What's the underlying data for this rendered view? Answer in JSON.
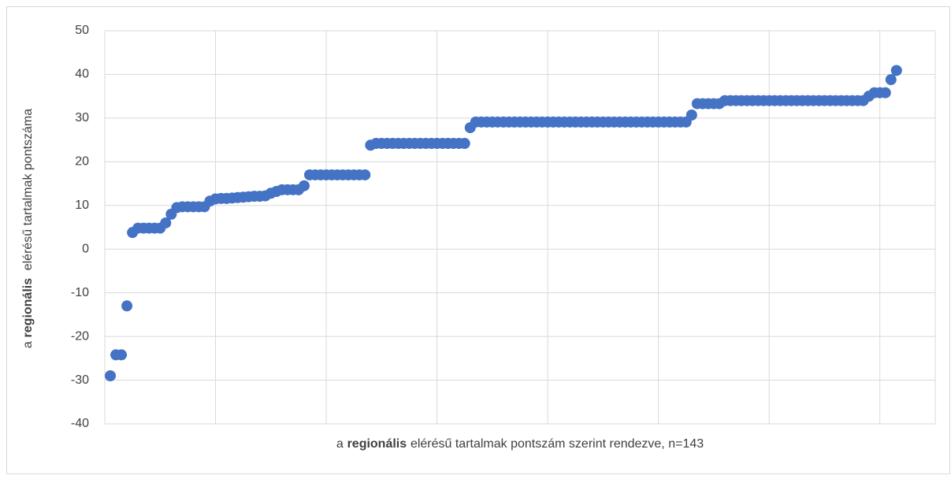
{
  "chart_data": {
    "type": "scatter",
    "x_label": {
      "prefix": "a",
      "bold": "regionális",
      "suffix": "elérésű tartalmak pontszám szerint rendezve, n=143"
    },
    "y_label": {
      "prefix": "a",
      "bold": "regionális",
      "suffix": "elérésű tartalmak pontszáma"
    },
    "color": "#4472c4",
    "grid": true,
    "xlim": [
      0,
      150
    ],
    "xticks": [
      0,
      20,
      40,
      60,
      80,
      100,
      120,
      140
    ],
    "ylim": [
      -40,
      50
    ],
    "yticks": [
      -40,
      -30,
      -20,
      -10,
      0,
      10,
      20,
      30,
      40,
      50
    ],
    "x": [
      1,
      2,
      3,
      4,
      5,
      6,
      7,
      8,
      9,
      10,
      11,
      12,
      13,
      14,
      15,
      16,
      17,
      18,
      19,
      20,
      21,
      22,
      23,
      24,
      25,
      26,
      27,
      28,
      29,
      30,
      31,
      32,
      33,
      34,
      35,
      36,
      37,
      38,
      39,
      40,
      41,
      42,
      43,
      44,
      45,
      46,
      47,
      48,
      49,
      50,
      51,
      52,
      53,
      54,
      55,
      56,
      57,
      58,
      59,
      60,
      61,
      62,
      63,
      64,
      65,
      66,
      67,
      68,
      69,
      70,
      71,
      72,
      73,
      74,
      75,
      76,
      77,
      78,
      79,
      80,
      81,
      82,
      83,
      84,
      85,
      86,
      87,
      88,
      89,
      90,
      91,
      92,
      93,
      94,
      95,
      96,
      97,
      98,
      99,
      100,
      101,
      102,
      103,
      104,
      105,
      106,
      107,
      108,
      109,
      110,
      111,
      112,
      113,
      114,
      115,
      116,
      117,
      118,
      119,
      120,
      121,
      122,
      123,
      124,
      125,
      126,
      127,
      128,
      129,
      130,
      131,
      132,
      133,
      134,
      135,
      136,
      137,
      138,
      139,
      140,
      141,
      142,
      143
    ],
    "values": [
      -29,
      -24.2,
      -24.2,
      -13,
      3.8,
      4.8,
      4.8,
      4.8,
      4.8,
      4.8,
      6,
      8,
      9.5,
      9.7,
      9.7,
      9.7,
      9.7,
      9.7,
      11,
      11.5,
      11.6,
      11.6,
      11.7,
      11.8,
      11.9,
      12,
      12.1,
      12.1,
      12.2,
      12.8,
      13.2,
      13.6,
      13.6,
      13.6,
      13.6,
      14.5,
      17,
      17,
      17,
      17,
      17,
      17,
      17,
      17,
      17,
      17,
      17,
      23.8,
      24.2,
      24.2,
      24.2,
      24.2,
      24.2,
      24.2,
      24.2,
      24.2,
      24.2,
      24.2,
      24.2,
      24.2,
      24.2,
      24.2,
      24.2,
      24.2,
      24.2,
      27.8,
      29.1,
      29.1,
      29.1,
      29.1,
      29.1,
      29.1,
      29.1,
      29.1,
      29.1,
      29.1,
      29.1,
      29.1,
      29.1,
      29.1,
      29.1,
      29.1,
      29.1,
      29.1,
      29.1,
      29.1,
      29.1,
      29.1,
      29.1,
      29.1,
      29.1,
      29.1,
      29.1,
      29.1,
      29.1,
      29.1,
      29.1,
      29.1,
      29.1,
      29.1,
      29.1,
      29.1,
      29.1,
      29.1,
      29.1,
      30.7,
      33.3,
      33.3,
      33.3,
      33.3,
      33.3,
      34,
      34,
      34,
      34,
      34,
      34,
      34,
      34,
      34,
      34,
      34,
      34,
      34,
      34,
      34,
      34,
      34,
      34,
      34,
      34,
      34,
      34,
      34,
      34,
      34,
      34,
      35,
      35.8,
      35.8,
      35.8,
      38.8,
      40.9
    ]
  }
}
